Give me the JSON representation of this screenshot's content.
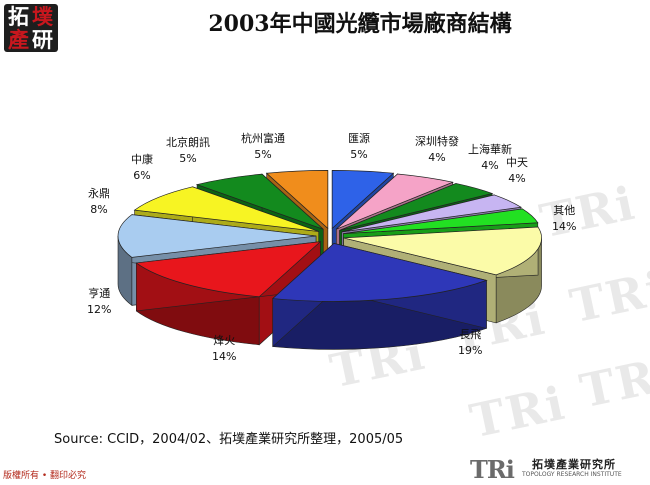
{
  "header": {
    "title": "2003年中國光纜市場廠商結構",
    "logo_chars": [
      "拓",
      "墣",
      "產",
      "研"
    ],
    "watermark_text": "TRi"
  },
  "chart_data": {
    "type": "pie",
    "title": "2003年中國光纜市場廠商結構",
    "slices": [
      {
        "label": "長飛",
        "value": 19,
        "pct_label": "19%",
        "color": "#2e37b8"
      },
      {
        "label": "烽火",
        "value": 14,
        "pct_label": "14%",
        "color": "#e8161c"
      },
      {
        "label": "亨通",
        "value": 12,
        "pct_label": "12%",
        "color": "#a9ccf0"
      },
      {
        "label": "永鼎",
        "value": 8,
        "pct_label": "8%",
        "color": "#f7f423"
      },
      {
        "label": "中康",
        "value": 6,
        "pct_label": "6%",
        "color": "#138a1e"
      },
      {
        "label": "北京朗訊",
        "value": 5,
        "pct_label": "5%",
        "color": "#f08d1c"
      },
      {
        "label": "杭州富通",
        "value": 5,
        "pct_label": "5%",
        "color": "#2e62e8"
      },
      {
        "label": "匯源",
        "value": 5,
        "pct_label": "5%",
        "color": "#f5a3c7"
      },
      {
        "label": "深圳特發",
        "value": 4,
        "pct_label": "4%",
        "color": "#138a1e"
      },
      {
        "label": "上海華新",
        "value": 4,
        "pct_label": "4%",
        "color": "#c7b5f2"
      },
      {
        "label": "中天",
        "value": 4,
        "pct_label": "4%",
        "color": "#22e022"
      },
      {
        "label": "其他",
        "value": 14,
        "pct_label": "14%",
        "color": "#fbfba8"
      }
    ]
  },
  "footer": {
    "source": "Source: CCID，2004/02、拓墣產業研究所整理，2005/05",
    "copyright": "版權所有 • 翻印必究",
    "logo_mark": "TRi",
    "logo_cn": "拓墣產業研究所",
    "logo_en": "TOPOLOGY RESEARCH INSTITUTE"
  }
}
